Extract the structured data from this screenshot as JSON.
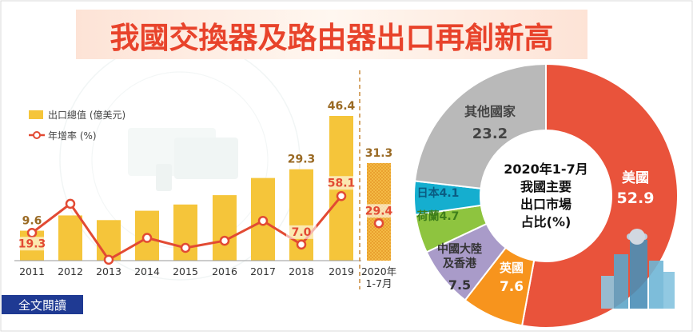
{
  "title": "我國交換器及路由器出口再創新高",
  "read_more": "全文閱讀",
  "colors": {
    "title": "#e8432b",
    "bar": "#f5c53a",
    "line": "#e24a33",
    "label_brown": "#9a6a24",
    "usa": "#e9533b",
    "other": "#b9b9b9",
    "japan": "#15aecf",
    "netherlands": "#8ec43f",
    "china_hk": "#a99bc9",
    "uk": "#f7941d"
  },
  "chart_data": [
    {
      "type": "bar",
      "title": "",
      "categories": [
        "2011",
        "2012",
        "2013",
        "2014",
        "2015",
        "2016",
        "2017",
        "2018",
        "2019",
        "2020年\n1-7月"
      ],
      "legend": [
        "出口總值 (億美元)",
        "年增率 (%)"
      ],
      "series": [
        {
          "name": "出口總值 (億美元)",
          "values": [
            9.6,
            14.5,
            13.0,
            16.0,
            18.0,
            21.0,
            26.5,
            29.3,
            46.4,
            31.3
          ]
        },
        {
          "name": "年增率 (%)",
          "type": "line",
          "values": [
            19.3,
            50,
            -9,
            14,
            3.5,
            11,
            32,
            7.0,
            58.1,
            29.4
          ]
        }
      ],
      "value_labels": {
        "bar": {
          "2011": "9.6",
          "2018": "29.3",
          "2019": "46.4",
          "2020年\n1-7月": "31.3"
        },
        "line": {
          "2011": "19.3",
          "2018": "7.0",
          "2019": "58.1",
          "2020年\n1-7月": "29.4"
        }
      },
      "ylim": [
        0,
        50
      ],
      "legend_position": "top-left",
      "grid": false
    },
    {
      "type": "pie",
      "center_label": [
        "2020年1-7月",
        "我國主要",
        "出口市場",
        "占比(%)"
      ],
      "slices": [
        {
          "name": "美國",
          "value": 52.9,
          "color_key": "usa"
        },
        {
          "name": "英國",
          "value": 7.6,
          "color_key": "uk"
        },
        {
          "name": "中國大陸\n及香港",
          "value": 7.5,
          "color_key": "china_hk"
        },
        {
          "name": "荷蘭",
          "value": 4.7,
          "color_key": "netherlands"
        },
        {
          "name": "日本",
          "value": 4.1,
          "color_key": "japan"
        },
        {
          "name": "其他國家",
          "value": 23.2,
          "color_key": "other"
        }
      ]
    }
  ]
}
